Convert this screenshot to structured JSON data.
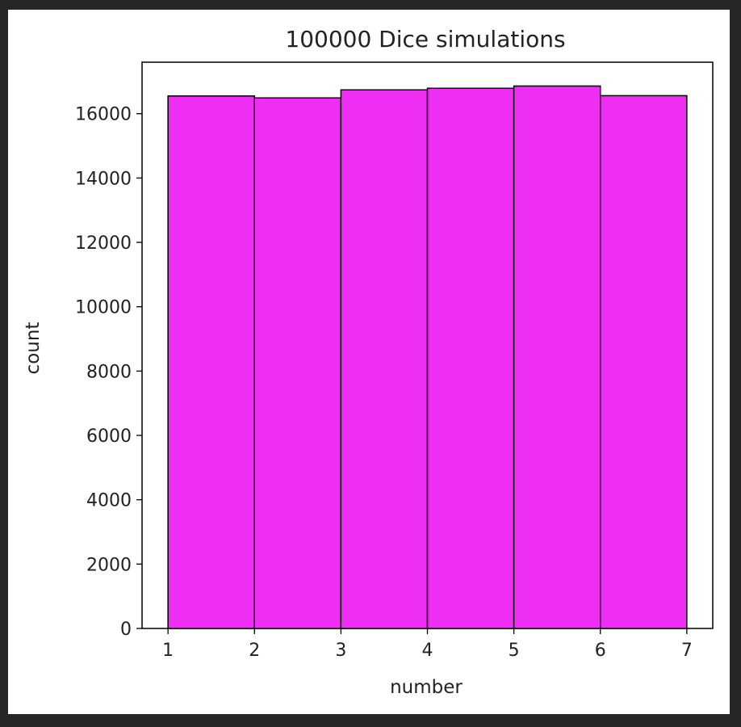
{
  "chart_data": {
    "type": "bar",
    "title": "100000 Dice simulations",
    "xlabel": "number",
    "ylabel": "count",
    "bins": [
      {
        "start": 1,
        "end": 2,
        "value": 16550
      },
      {
        "start": 2,
        "end": 3,
        "value": 16490
      },
      {
        "start": 3,
        "end": 4,
        "value": 16740
      },
      {
        "start": 4,
        "end": 5,
        "value": 16790
      },
      {
        "start": 5,
        "end": 6,
        "value": 16860
      },
      {
        "start": 6,
        "end": 7,
        "value": 16560
      }
    ],
    "xlim": [
      0.7,
      7.3
    ],
    "ylim": [
      0,
      17600
    ],
    "xticks": [
      "1",
      "2",
      "3",
      "4",
      "5",
      "6",
      "7"
    ],
    "yticks": [
      "0",
      "2000",
      "4000",
      "6000",
      "8000",
      "10000",
      "12000",
      "14000",
      "16000"
    ],
    "bar_color": "#ee2ef3",
    "edge_color": "#000000",
    "grid": false
  }
}
